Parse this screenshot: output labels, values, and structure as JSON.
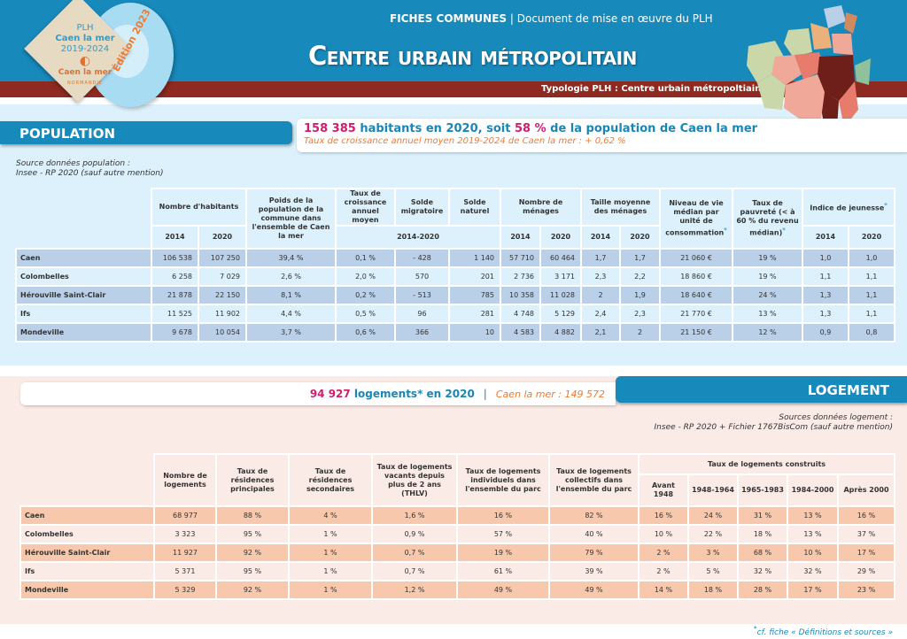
{
  "header": {
    "logo": {
      "plh": "PLH",
      "name": "Caen la mer",
      "years": "2019-2024",
      "brand": "Caen la mer",
      "region": "NORMANDIE",
      "edition": "Édition 2023"
    },
    "fiches_label": "FICHES COMMUNES",
    "fiches_sep": "|",
    "fiches_sub": "Document de mise en œuvre du PLH",
    "title": "Centre urbain métropolitain",
    "typologie": "Typologie PLH : Centre urbain métropoltiain"
  },
  "population": {
    "tab": "POPULATION",
    "summary_count": "158 385",
    "summary_mid": " habitants en 2020, soit ",
    "summary_pct": "58 %",
    "summary_end": " de la population de Caen la mer",
    "growth": "Taux de croissance annuel moyen 2019-2024 de Caen la mer : + 0,62 %",
    "source_1": "Source données population :",
    "source_2": "Insee - RP 2020 (sauf autre mention)",
    "headers": {
      "habitants": "Nombre d'habitants",
      "poids": "Poids de la population de la commune dans l'ensemble de Caen la mer",
      "taux": "Taux de croissance annuel moyen",
      "solde_mig": "Solde migratoire",
      "solde_nat": "Solde naturel",
      "menages": "Nombre de ménages",
      "taille": "Taille moyenne des ménages",
      "niveau": "Niveau de vie médian par unité de consommation",
      "pauvrete": "Taux de pauvreté (< à 60 % du revenu médian)",
      "jeunesse": "Indice de jeunesse",
      "y2014": "2014",
      "y2020": "2020",
      "period": "2014-2020",
      "star": "*"
    },
    "rows": [
      [
        "Caen",
        "106 538",
        "107 250",
        "39,4 %",
        "0,1 %",
        "- 428",
        "1 140",
        "57 710",
        "60 464",
        "1,7",
        "1,7",
        "21 060 €",
        "19 %",
        "1,0",
        "1,0"
      ],
      [
        "Colombelles",
        "6 258",
        "7 029",
        "2,6 %",
        "2,0 %",
        "570",
        "201",
        "2 736",
        "3 171",
        "2,3",
        "2,2",
        "18 860 €",
        "19 %",
        "1,1",
        "1,1"
      ],
      [
        "Hérouville Saint-Clair",
        "21 878",
        "22 150",
        "8,1 %",
        "0,2 %",
        "- 513",
        "785",
        "10 358",
        "11 028",
        "2",
        "1,9",
        "18 640 €",
        "24 %",
        "1,3",
        "1,1"
      ],
      [
        "Ifs",
        "11 525",
        "11 902",
        "4,4 %",
        "0,5 %",
        "96",
        "281",
        "4 748",
        "5 129",
        "2,4",
        "2,3",
        "21 770 €",
        "13 %",
        "1,3",
        "1,1"
      ],
      [
        "Mondeville",
        "9 678",
        "10 054",
        "3,7 %",
        "0,6 %",
        "366",
        "10",
        "4 583",
        "4 882",
        "2,1",
        "2",
        "21 150 €",
        "12 %",
        "0,9",
        "0,8"
      ]
    ]
  },
  "logement": {
    "tab": "LOGEMENT",
    "summary_count": "94 927",
    "summary_text": " logements* en 2020",
    "summary_sep": "|",
    "summary_caen": "Caen la mer : 149 572",
    "source_1": "Sources données logement :",
    "source_2": "Insee - RP 2020 + Fichier 1767BisCom (sauf autre mention)",
    "headers": {
      "nombre": "Nombre de logements",
      "rp": "Taux de résidences principales",
      "rs": "Taux de résidences secondaires",
      "thlv": "Taux de logements vacants depuis plus de 2 ans (THLV)",
      "indiv": "Taux de logements individuels dans l'ensemble du parc",
      "coll": "Taux de logements collectifs dans l'ensemble du parc",
      "construits": "Taux de logements construits",
      "p1": "Avant 1948",
      "p2": "1948-1964",
      "p3": "1965-1983",
      "p4": "1984-2000",
      "p5": "Après 2000"
    },
    "rows": [
      [
        "Caen",
        "68 977",
        "88 %",
        "4 %",
        "1,6 %",
        "16 %",
        "82 %",
        "16 %",
        "24 %",
        "31 %",
        "13 %",
        "16 %"
      ],
      [
        "Colombelles",
        "3 323",
        "95 %",
        "1 %",
        "0,9 %",
        "57 %",
        "40 %",
        "10 %",
        "22 %",
        "18 %",
        "13 %",
        "37 %"
      ],
      [
        "Hérouville Saint-Clair",
        "11 927",
        "92 %",
        "1 %",
        "0,7 %",
        "19 %",
        "79 %",
        "2 %",
        "3 %",
        "68 %",
        "10 %",
        "17 %"
      ],
      [
        "Ifs",
        "5 371",
        "95 %",
        "1 %",
        "0,7 %",
        "61 %",
        "39 %",
        "2 %",
        "5 %",
        "32 %",
        "32 %",
        "29 %"
      ],
      [
        "Mondeville",
        "5 329",
        "92 %",
        "1 %",
        "1,2 %",
        "49 %",
        "49 %",
        "14 %",
        "18 %",
        "28 %",
        "17 %",
        "23 %"
      ]
    ]
  },
  "footer": {
    "star": "*",
    "note": "cf. fiche « Définitions et sources »"
  }
}
